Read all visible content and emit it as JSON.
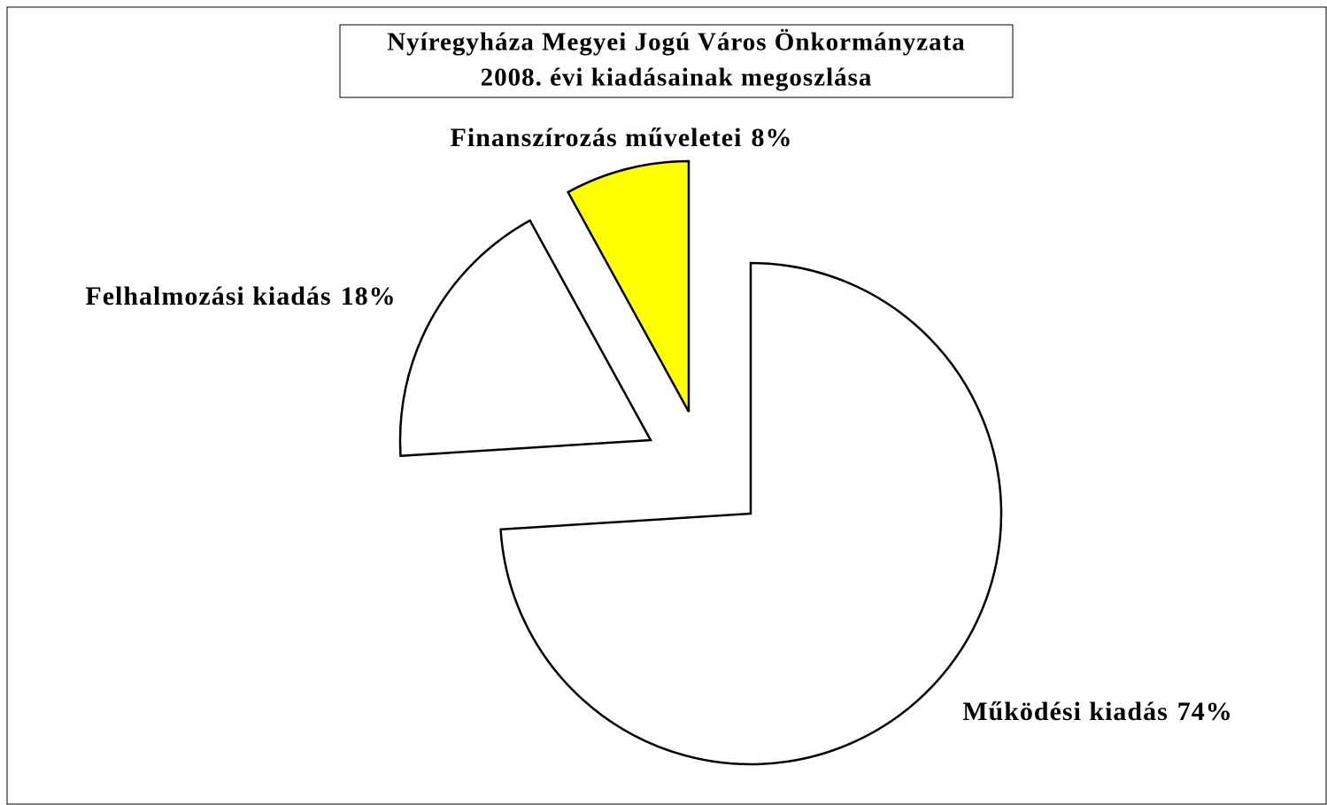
{
  "chart_data": {
    "type": "pie",
    "title": "Nyíregyháza Megyei Jogú Város Önkormányzata",
    "subtitle": "2008. évi kiadásainak megoszlása",
    "categories": [
      "Működési kiadás",
      "Felhalmozási kiadás",
      "Finanszírozás műveletei"
    ],
    "values": [
      74,
      18,
      8
    ],
    "value_labels": [
      "74%",
      "18%",
      "8%"
    ],
    "colors": [
      "#ffffff",
      "#ffffff",
      "#ffff00"
    ]
  }
}
